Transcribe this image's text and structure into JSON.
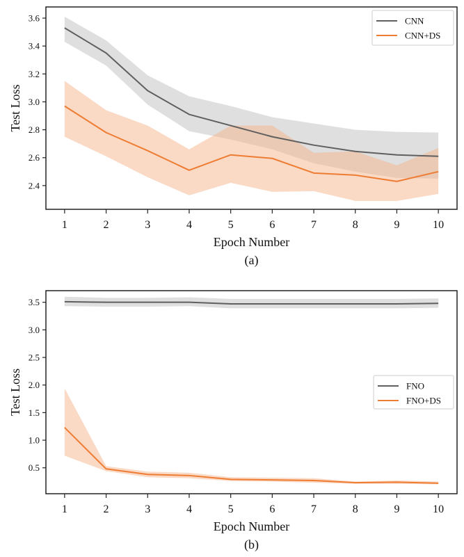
{
  "colors": {
    "base": "#5f5f5f",
    "ds": "#ee7c33",
    "base_band": "#bfbfbf",
    "ds_band": "#f5b38b",
    "frame": "#222222"
  },
  "chart_data": [
    {
      "type": "line",
      "panel": "a",
      "caption": "(a)",
      "xlabel": "Epoch Number",
      "ylabel": "Test Loss",
      "x": [
        1,
        2,
        3,
        4,
        5,
        6,
        7,
        8,
        9,
        10
      ],
      "xlim": [
        0.55,
        10.45
      ],
      "ylim": [
        2.23,
        3.68
      ],
      "yticks": [
        2.4,
        2.6,
        2.8,
        3.0,
        3.2,
        3.4,
        3.6
      ],
      "ytick_labels": [
        "2.4",
        "2.6",
        "2.8",
        "3.0",
        "3.2",
        "3.4",
        "3.6"
      ],
      "xtick_labels": [
        "1",
        "2",
        "3",
        "4",
        "5",
        "6",
        "7",
        "8",
        "9",
        "10"
      ],
      "legend_position": "top-right",
      "series": [
        {
          "name": "CNN",
          "color": "#5f5f5f",
          "band_color": "#bfbfbf",
          "values": [
            3.53,
            3.35,
            3.08,
            2.91,
            2.83,
            2.75,
            2.69,
            2.645,
            2.62,
            2.61
          ],
          "lower": [
            3.43,
            3.26,
            2.98,
            2.79,
            2.73,
            2.66,
            2.56,
            2.5,
            2.455,
            2.45
          ],
          "upper": [
            3.61,
            3.44,
            3.19,
            3.04,
            2.97,
            2.89,
            2.845,
            2.8,
            2.785,
            2.78
          ]
        },
        {
          "name": "CNN+DS",
          "color": "#ee7c33",
          "band_color": "#f5b38b",
          "values": [
            2.97,
            2.78,
            2.65,
            2.51,
            2.62,
            2.595,
            2.49,
            2.475,
            2.43,
            2.5
          ],
          "lower": [
            2.75,
            2.61,
            2.46,
            2.33,
            2.42,
            2.355,
            2.36,
            2.29,
            2.29,
            2.34
          ],
          "upper": [
            3.15,
            2.94,
            2.83,
            2.66,
            2.83,
            2.83,
            2.635,
            2.645,
            2.545,
            2.67
          ]
        }
      ]
    },
    {
      "type": "line",
      "panel": "b",
      "caption": "(b)",
      "xlabel": "Epoch Number",
      "ylabel": "Test Loss",
      "x": [
        1,
        2,
        3,
        4,
        5,
        6,
        7,
        8,
        9,
        10
      ],
      "xlim": [
        0.55,
        10.45
      ],
      "ylim": [
        0.03,
        3.71
      ],
      "yticks": [
        0.5,
        1.0,
        1.5,
        2.0,
        2.5,
        3.0,
        3.5
      ],
      "ytick_labels": [
        "0.5",
        "1.0",
        "1.5",
        "2.0",
        "2.5",
        "3.0",
        "3.5"
      ],
      "xtick_labels": [
        "1",
        "2",
        "3",
        "4",
        "5",
        "6",
        "7",
        "8",
        "9",
        "10"
      ],
      "legend_position": "center-right",
      "series": [
        {
          "name": "FNO",
          "color": "#5f5f5f",
          "band_color": "#bfbfbf",
          "values": [
            3.51,
            3.5,
            3.5,
            3.5,
            3.47,
            3.47,
            3.47,
            3.47,
            3.47,
            3.48
          ],
          "lower": [
            3.43,
            3.42,
            3.42,
            3.43,
            3.39,
            3.39,
            3.39,
            3.39,
            3.39,
            3.4
          ],
          "upper": [
            3.6,
            3.58,
            3.58,
            3.59,
            3.56,
            3.56,
            3.56,
            3.56,
            3.56,
            3.57
          ]
        },
        {
          "name": "FNO+DS",
          "color": "#ee7c33",
          "band_color": "#f5b38b",
          "values": [
            1.23,
            0.48,
            0.38,
            0.36,
            0.29,
            0.28,
            0.27,
            0.23,
            0.24,
            0.22
          ],
          "lower": [
            0.72,
            0.44,
            0.33,
            0.31,
            0.26,
            0.25,
            0.23,
            0.21,
            0.21,
            0.2
          ],
          "upper": [
            1.94,
            0.53,
            0.43,
            0.41,
            0.33,
            0.32,
            0.31,
            0.25,
            0.27,
            0.25
          ]
        }
      ]
    }
  ]
}
